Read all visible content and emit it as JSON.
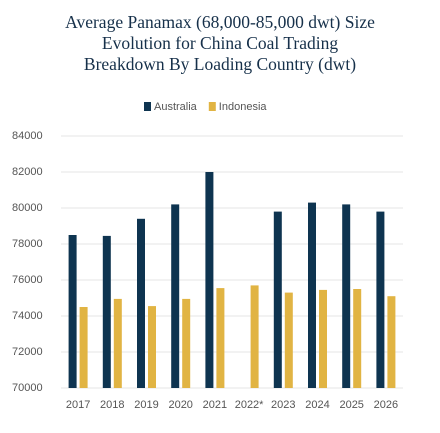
{
  "chart_data": {
    "type": "bar",
    "title": "Average Panamax (68,000-85,000 dwt) Size Evolution for China Coal Trading Breakdown By Loading Country (dwt)",
    "categories": [
      "2017",
      "2018",
      "2019",
      "2020",
      "2021",
      "2022*",
      "2023",
      "2024",
      "2025",
      "2026"
    ],
    "series": [
      {
        "name": "Australia",
        "color": "#0e3450",
        "values": [
          78500,
          78450,
          79400,
          80200,
          82000,
          null,
          79800,
          80300,
          80200,
          79800
        ]
      },
      {
        "name": "Indonesia",
        "color": "#e1b443",
        "values": [
          74500,
          74950,
          74550,
          74950,
          75550,
          75700,
          75300,
          75450,
          75500,
          75100
        ]
      }
    ],
    "ylim": [
      70000,
      84000
    ],
    "yticks": [
      70000,
      72000,
      74000,
      76000,
      78000,
      80000,
      82000,
      84000
    ],
    "grid": true
  }
}
